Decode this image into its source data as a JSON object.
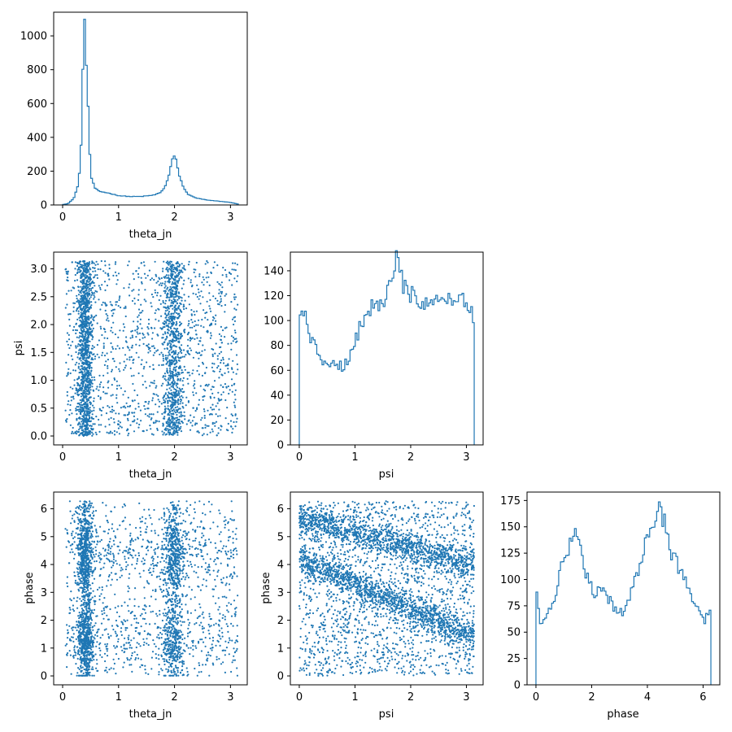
{
  "colors": {
    "series": "#1f77b4",
    "axes": "#000000",
    "background": "#ffffff"
  },
  "chart_data": [
    {
      "id": "hist-theta_jn",
      "type": "histogram",
      "xlabel": "theta_jn",
      "ylabel": "",
      "xlim": [
        -0.16,
        3.3
      ],
      "ylim": [
        0,
        1140
      ],
      "xticks": [
        0,
        1,
        2,
        3
      ],
      "yticks": [
        0,
        200,
        400,
        600,
        800,
        1000
      ],
      "xtick_labels": [
        "0",
        "1",
        "2",
        "3"
      ],
      "ytick_labels": [
        "0",
        "200",
        "400",
        "600",
        "800",
        "1000"
      ],
      "bin_start": 0.0,
      "bin_end": 3.14,
      "points": [
        [
          0.0,
          2
        ],
        [
          0.1,
          8
        ],
        [
          0.2,
          40
        ],
        [
          0.28,
          120
        ],
        [
          0.32,
          260
        ],
        [
          0.35,
          580
        ],
        [
          0.37,
          960
        ],
        [
          0.39,
          1085
        ],
        [
          0.42,
          880
        ],
        [
          0.45,
          630
        ],
        [
          0.48,
          330
        ],
        [
          0.52,
          150
        ],
        [
          0.58,
          100
        ],
        [
          0.65,
          80
        ],
        [
          0.75,
          75
        ],
        [
          0.85,
          68
        ],
        [
          1.0,
          55
        ],
        [
          1.2,
          50
        ],
        [
          1.4,
          50
        ],
        [
          1.55,
          55
        ],
        [
          1.65,
          60
        ],
        [
          1.75,
          75
        ],
        [
          1.82,
          100
        ],
        [
          1.88,
          150
        ],
        [
          1.93,
          220
        ],
        [
          1.97,
          280
        ],
        [
          2.0,
          300
        ],
        [
          2.04,
          250
        ],
        [
          2.08,
          180
        ],
        [
          2.15,
          110
        ],
        [
          2.25,
          60
        ],
        [
          2.4,
          40
        ],
        [
          2.6,
          28
        ],
        [
          2.8,
          22
        ],
        [
          3.0,
          15
        ],
        [
          3.14,
          5
        ]
      ]
    },
    {
      "id": "scatter-theta_jn-psi",
      "type": "scatter",
      "xlabel": "theta_jn",
      "ylabel": "psi",
      "xlim": [
        -0.16,
        3.3
      ],
      "ylim": [
        -0.16,
        3.3
      ],
      "xticks": [
        0,
        1,
        2,
        3
      ],
      "yticks": [
        0.0,
        0.5,
        1.0,
        1.5,
        2.0,
        2.5,
        3.0
      ],
      "xtick_labels": [
        "0",
        "1",
        "2",
        "3"
      ],
      "ytick_labels": [
        "0.0",
        "0.5",
        "1.0",
        "1.5",
        "2.0",
        "2.5",
        "3.0"
      ],
      "x_range": [
        0,
        3.14
      ],
      "y_range": [
        0,
        3.14
      ],
      "n_points": 3200,
      "x_distribution": "bimodal peaks near 0.4 and 2.0",
      "y_distribution": "uniform"
    },
    {
      "id": "hist-psi",
      "type": "histogram",
      "xlabel": "psi",
      "ylabel": "",
      "xlim": [
        -0.16,
        3.3
      ],
      "ylim": [
        0,
        155
      ],
      "xticks": [
        0,
        1,
        2,
        3
      ],
      "yticks": [
        0,
        20,
        40,
        60,
        80,
        100,
        120,
        140
      ],
      "xtick_labels": [
        "0",
        "1",
        "2",
        "3"
      ],
      "ytick_labels": [
        "0",
        "20",
        "40",
        "60",
        "80",
        "100",
        "120",
        "140"
      ],
      "bin_start": 0.0,
      "bin_end": 3.14,
      "points": [
        [
          0.0,
          107
        ],
        [
          0.1,
          112
        ],
        [
          0.2,
          85
        ],
        [
          0.3,
          78
        ],
        [
          0.4,
          68
        ],
        [
          0.5,
          62
        ],
        [
          0.6,
          68
        ],
        [
          0.7,
          65
        ],
        [
          0.8,
          62
        ],
        [
          0.9,
          70
        ],
        [
          1.0,
          82
        ],
        [
          1.1,
          97
        ],
        [
          1.2,
          108
        ],
        [
          1.3,
          112
        ],
        [
          1.4,
          115
        ],
        [
          1.5,
          118
        ],
        [
          1.6,
          123
        ],
        [
          1.7,
          132
        ],
        [
          1.75,
          149
        ],
        [
          1.8,
          135
        ],
        [
          1.9,
          128
        ],
        [
          2.0,
          120
        ],
        [
          2.1,
          118
        ],
        [
          2.2,
          117
        ],
        [
          2.3,
          116
        ],
        [
          2.4,
          115
        ],
        [
          2.5,
          120
        ],
        [
          2.6,
          122
        ],
        [
          2.7,
          115
        ],
        [
          2.8,
          118
        ],
        [
          2.9,
          122
        ],
        [
          3.0,
          108
        ],
        [
          3.14,
          105
        ]
      ]
    },
    {
      "id": "scatter-theta_jn-phase",
      "type": "scatter",
      "xlabel": "theta_jn",
      "ylabel": "phase",
      "xlim": [
        -0.16,
        3.3
      ],
      "ylim": [
        -0.32,
        6.6
      ],
      "xticks": [
        0,
        1,
        2,
        3
      ],
      "yticks": [
        0,
        1,
        2,
        3,
        4,
        5,
        6
      ],
      "xtick_labels": [
        "0",
        "1",
        "2",
        "3"
      ],
      "ytick_labels": [
        "0",
        "1",
        "2",
        "3",
        "4",
        "5",
        "6"
      ],
      "x_range": [
        0,
        3.14
      ],
      "y_range": [
        0,
        6.28
      ],
      "n_points": 3200,
      "x_distribution": "bimodal peaks near 0.4 and 2.0",
      "y_distribution": "phase peaks near 1.3 and 4.4"
    },
    {
      "id": "scatter-psi-phase",
      "type": "scatter",
      "xlabel": "psi",
      "ylabel": "phase",
      "xlim": [
        -0.16,
        3.3
      ],
      "ylim": [
        -0.32,
        6.6
      ],
      "xticks": [
        0,
        1,
        2,
        3
      ],
      "yticks": [
        0,
        1,
        2,
        3,
        4,
        5,
        6
      ],
      "xtick_labels": [
        "0",
        "1",
        "2",
        "3"
      ],
      "ytick_labels": [
        "0",
        "1",
        "2",
        "3",
        "4",
        "5",
        "6"
      ],
      "x_range": [
        0,
        3.14
      ],
      "y_range": [
        0,
        6.28
      ],
      "n_points": 4200,
      "x_distribution": "uniform",
      "y_distribution": "two diagonal bands: phase ~ 4.2 - 0.9*psi and phase ~ 5.7 - 0.55*psi (mod 2pi), plus uniform background"
    },
    {
      "id": "hist-phase",
      "type": "histogram",
      "xlabel": "phase",
      "ylabel": "",
      "xlim": [
        -0.32,
        6.6
      ],
      "ylim": [
        0,
        183
      ],
      "xticks": [
        0,
        2,
        4,
        6
      ],
      "yticks": [
        0,
        25,
        50,
        75,
        100,
        125,
        150,
        175
      ],
      "xtick_labels": [
        "0",
        "2",
        "4",
        "6"
      ],
      "ytick_labels": [
        "0",
        "25",
        "50",
        "75",
        "100",
        "125",
        "150",
        "175"
      ],
      "bin_start": 0.0,
      "bin_end": 6.28,
      "points": [
        [
          0.0,
          90
        ],
        [
          0.15,
          60
        ],
        [
          0.3,
          58
        ],
        [
          0.5,
          70
        ],
        [
          0.7,
          88
        ],
        [
          0.9,
          110
        ],
        [
          1.0,
          125
        ],
        [
          1.2,
          130
        ],
        [
          1.35,
          140
        ],
        [
          1.5,
          150
        ],
        [
          1.6,
          130
        ],
        [
          1.75,
          110
        ],
        [
          1.9,
          95
        ],
        [
          2.1,
          88
        ],
        [
          2.3,
          90
        ],
        [
          2.5,
          85
        ],
        [
          2.7,
          78
        ],
        [
          2.9,
          72
        ],
        [
          3.1,
          70
        ],
        [
          3.3,
          80
        ],
        [
          3.5,
          95
        ],
        [
          3.7,
          110
        ],
        [
          3.9,
          130
        ],
        [
          4.1,
          145
        ],
        [
          4.3,
          160
        ],
        [
          4.45,
          176
        ],
        [
          4.6,
          155
        ],
        [
          4.8,
          130
        ],
        [
          5.0,
          118
        ],
        [
          5.2,
          105
        ],
        [
          5.4,
          95
        ],
        [
          5.6,
          85
        ],
        [
          5.8,
          72
        ],
        [
          6.0,
          60
        ],
        [
          6.15,
          65
        ],
        [
          6.28,
          72
        ]
      ]
    }
  ]
}
